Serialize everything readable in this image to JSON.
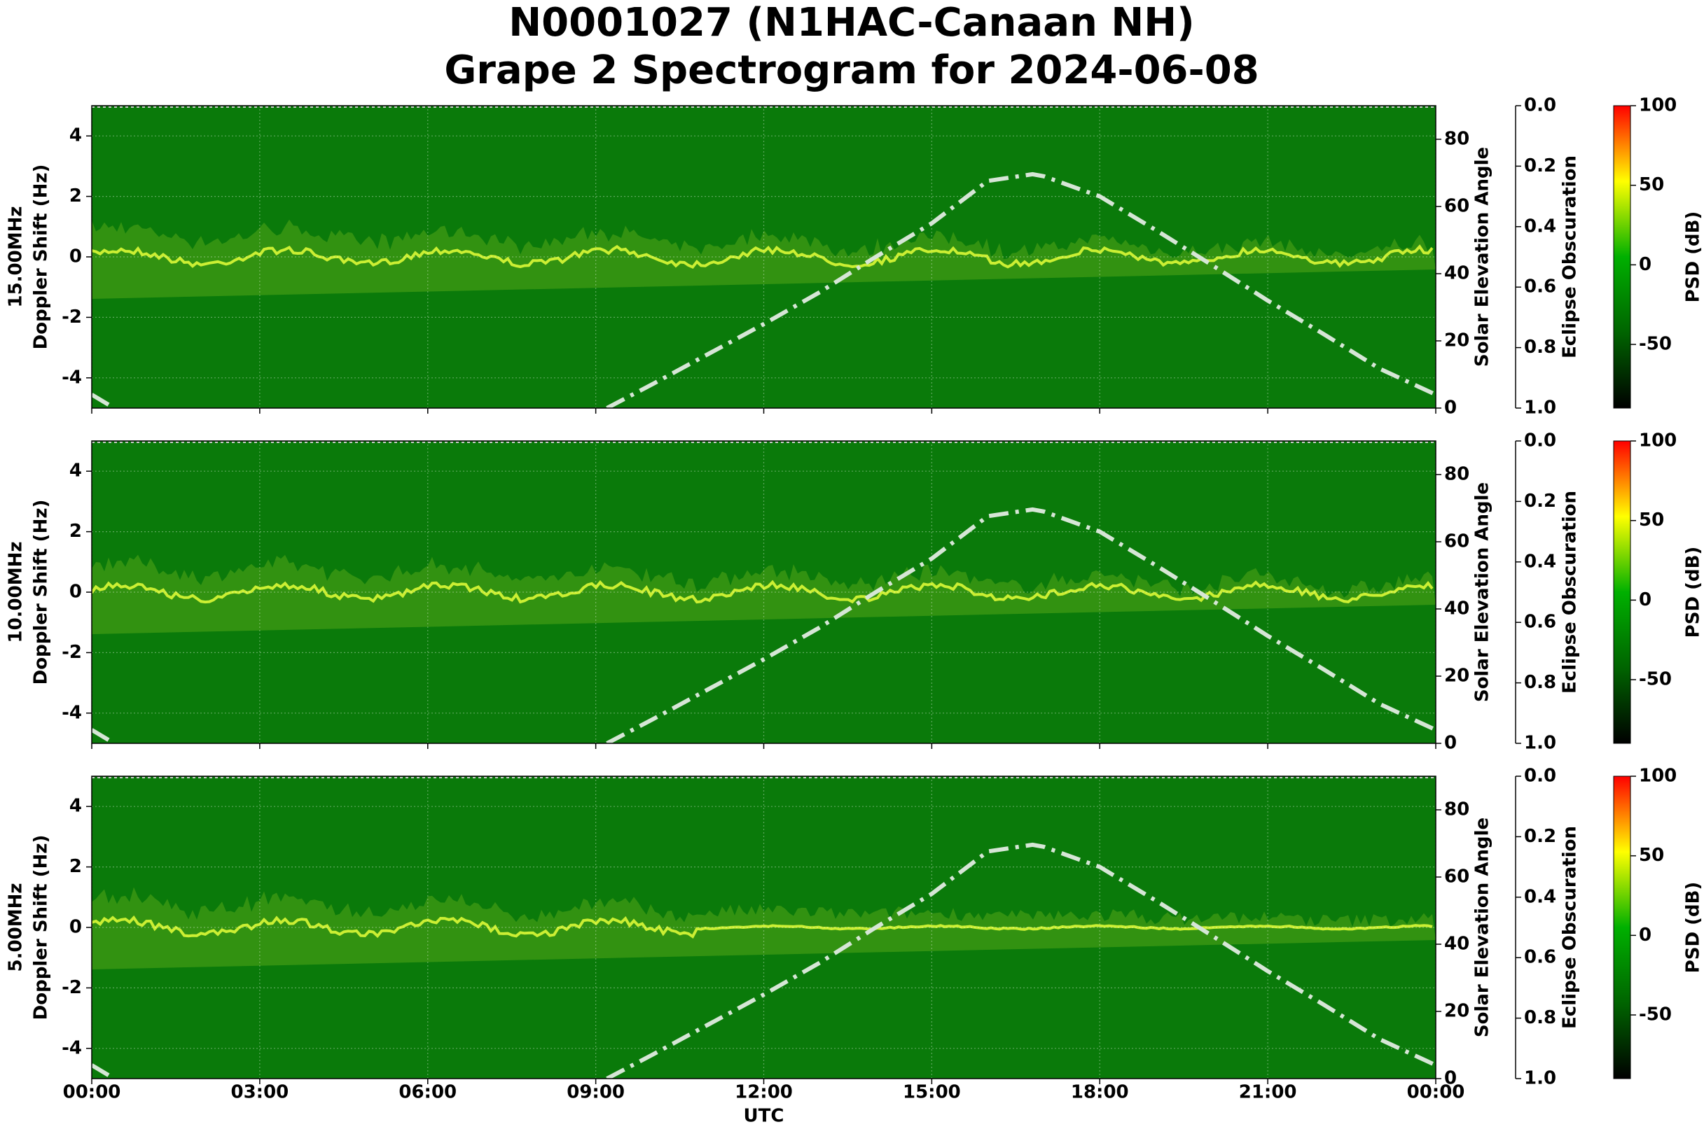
{
  "page_title": [
    "N0001027 (N1HAC-Canaan NH)",
    "Grape 2 Spectrogram for 2024-06-08"
  ],
  "chart_data": [
    {
      "type": "spectrogram",
      "ylabel": [
        "15.00MHz",
        "Doppler Shift (Hz)"
      ],
      "background_color": "#0a7a0a",
      "grid": true,
      "xlim": [
        0,
        24
      ],
      "xticks": [
        0,
        3,
        6,
        9,
        12,
        15,
        18,
        21,
        24
      ],
      "ylim": [
        -5,
        5
      ],
      "yticks": [
        -4,
        -2,
        0,
        2,
        4
      ],
      "y2label": "Solar Elevation Angle",
      "y2lim": [
        0,
        90
      ],
      "y2ticks": [
        0,
        20,
        40,
        60,
        80
      ],
      "y3label": "Eclipse Obscuration",
      "y3lim": [
        1,
        0
      ],
      "y3ticks": [
        {
          "value": 0,
          "label": "0.0"
        },
        {
          "value": 0.2,
          "label": "0.2"
        },
        {
          "value": 0.4,
          "label": "0.4"
        },
        {
          "value": 0.6,
          "label": "0.6"
        },
        {
          "value": 0.8,
          "label": "0.8"
        },
        {
          "value": 1,
          "label": "1.0"
        }
      ],
      "colorbar_label": "PSD (dB)",
      "clim": [
        -90,
        100
      ],
      "cticks": [
        -50,
        0,
        50,
        100
      ],
      "cmap_colors": [
        "#000000",
        "#006400",
        "#00b000",
        "#ffff00",
        "#ff0000"
      ],
      "series": [
        {
          "name": "Solar Elevation Angle",
          "axis": "y2",
          "color": "#d6e6d6",
          "x": [
            0,
            0.4,
            4,
            9.2,
            10,
            11,
            12,
            13,
            14,
            15,
            16,
            16.8,
            17,
            18,
            19,
            20,
            21,
            22,
            23,
            24
          ],
          "values": [
            4,
            0,
            null,
            0,
            7,
            16,
            25,
            34.5,
            45,
            55,
            67.6,
            69.6,
            69,
            63,
            53,
            42.6,
            32,
            22,
            11.7,
            4
          ]
        }
      ]
    },
    {
      "type": "spectrogram",
      "ylabel": [
        "10.00MHz",
        "Doppler Shift (Hz)"
      ],
      "background_color": "#0a7a0a",
      "grid": true,
      "xlim": [
        0,
        24
      ],
      "xticks": [
        0,
        3,
        6,
        9,
        12,
        15,
        18,
        21,
        24
      ],
      "ylim": [
        -5,
        5
      ],
      "yticks": [
        -4,
        -2,
        0,
        2,
        4
      ],
      "y2label": "Solar Elevation Angle",
      "y2lim": [
        0,
        90
      ],
      "y2ticks": [
        0,
        20,
        40,
        60,
        80
      ],
      "y3label": "Eclipse Obscuration",
      "y3lim": [
        1,
        0
      ],
      "y3ticks": [
        {
          "value": 0,
          "label": "0.0"
        },
        {
          "value": 0.2,
          "label": "0.2"
        },
        {
          "value": 0.4,
          "label": "0.4"
        },
        {
          "value": 0.6,
          "label": "0.6"
        },
        {
          "value": 0.8,
          "label": "0.8"
        },
        {
          "value": 1,
          "label": "1.0"
        }
      ],
      "colorbar_label": "PSD (dB)",
      "clim": [
        -90,
        100
      ],
      "cticks": [
        -50,
        0,
        50,
        100
      ],
      "cmap_colors": [
        "#000000",
        "#006400",
        "#00b000",
        "#ffff00",
        "#ff0000"
      ],
      "series": [
        {
          "name": "Solar Elevation Angle",
          "axis": "y2",
          "color": "#d6e6d6",
          "x": [
            0,
            0.4,
            4,
            9.2,
            10,
            11,
            12,
            13,
            14,
            15,
            16,
            16.8,
            17,
            18,
            19,
            20,
            21,
            22,
            23,
            24
          ],
          "values": [
            4,
            0,
            null,
            0,
            7,
            16,
            25,
            34.5,
            45,
            55,
            67.6,
            69.6,
            69,
            63,
            53,
            42.6,
            32,
            22,
            11.7,
            4
          ]
        }
      ]
    },
    {
      "type": "spectrogram",
      "ylabel": [
        "5.00MHz",
        "Doppler Shift (Hz)"
      ],
      "background_color": "#0a7a0a",
      "grid": true,
      "xlim": [
        0,
        24
      ],
      "xticks": [
        {
          "value": 0,
          "label": "00:00"
        },
        {
          "value": 3,
          "label": "03:00"
        },
        {
          "value": 6,
          "label": "06:00"
        },
        {
          "value": 9,
          "label": "09:00"
        },
        {
          "value": 12,
          "label": "12:00"
        },
        {
          "value": 15,
          "label": "15:00"
        },
        {
          "value": 18,
          "label": "18:00"
        },
        {
          "value": 21,
          "label": "21:00"
        },
        {
          "value": 24,
          "label": "00:00"
        }
      ],
      "xlabel": "UTC",
      "ylim": [
        -5,
        5
      ],
      "yticks": [
        -4,
        -2,
        0,
        2,
        4
      ],
      "y2label": "Solar Elevation Angle",
      "y2lim": [
        0,
        90
      ],
      "y2ticks": [
        0,
        20,
        40,
        60,
        80
      ],
      "y3label": "Eclipse Obscuration",
      "y3lim": [
        1,
        0
      ],
      "y3ticks": [
        {
          "value": 0,
          "label": "0.0"
        },
        {
          "value": 0.2,
          "label": "0.2"
        },
        {
          "value": 0.4,
          "label": "0.4"
        },
        {
          "value": 0.6,
          "label": "0.6"
        },
        {
          "value": 0.8,
          "label": "0.8"
        },
        {
          "value": 1,
          "label": "1.0"
        }
      ],
      "colorbar_label": "PSD (dB)",
      "clim": [
        -90,
        100
      ],
      "cticks": [
        -50,
        0,
        50,
        100
      ],
      "cmap_colors": [
        "#000000",
        "#006400",
        "#00b000",
        "#ffff00",
        "#ff0000"
      ],
      "series": [
        {
          "name": "Solar Elevation Angle",
          "axis": "y2",
          "color": "#d6e6d6",
          "x": [
            0,
            0.4,
            4,
            9.2,
            10,
            11,
            12,
            13,
            14,
            15,
            16,
            16.8,
            17,
            18,
            19,
            20,
            21,
            22,
            23,
            24
          ],
          "values": [
            4,
            0,
            null,
            0,
            7,
            16,
            25,
            34.5,
            45,
            55,
            67.6,
            69.6,
            69,
            63,
            53,
            42.6,
            32,
            22,
            11.7,
            4
          ]
        }
      ]
    }
  ]
}
